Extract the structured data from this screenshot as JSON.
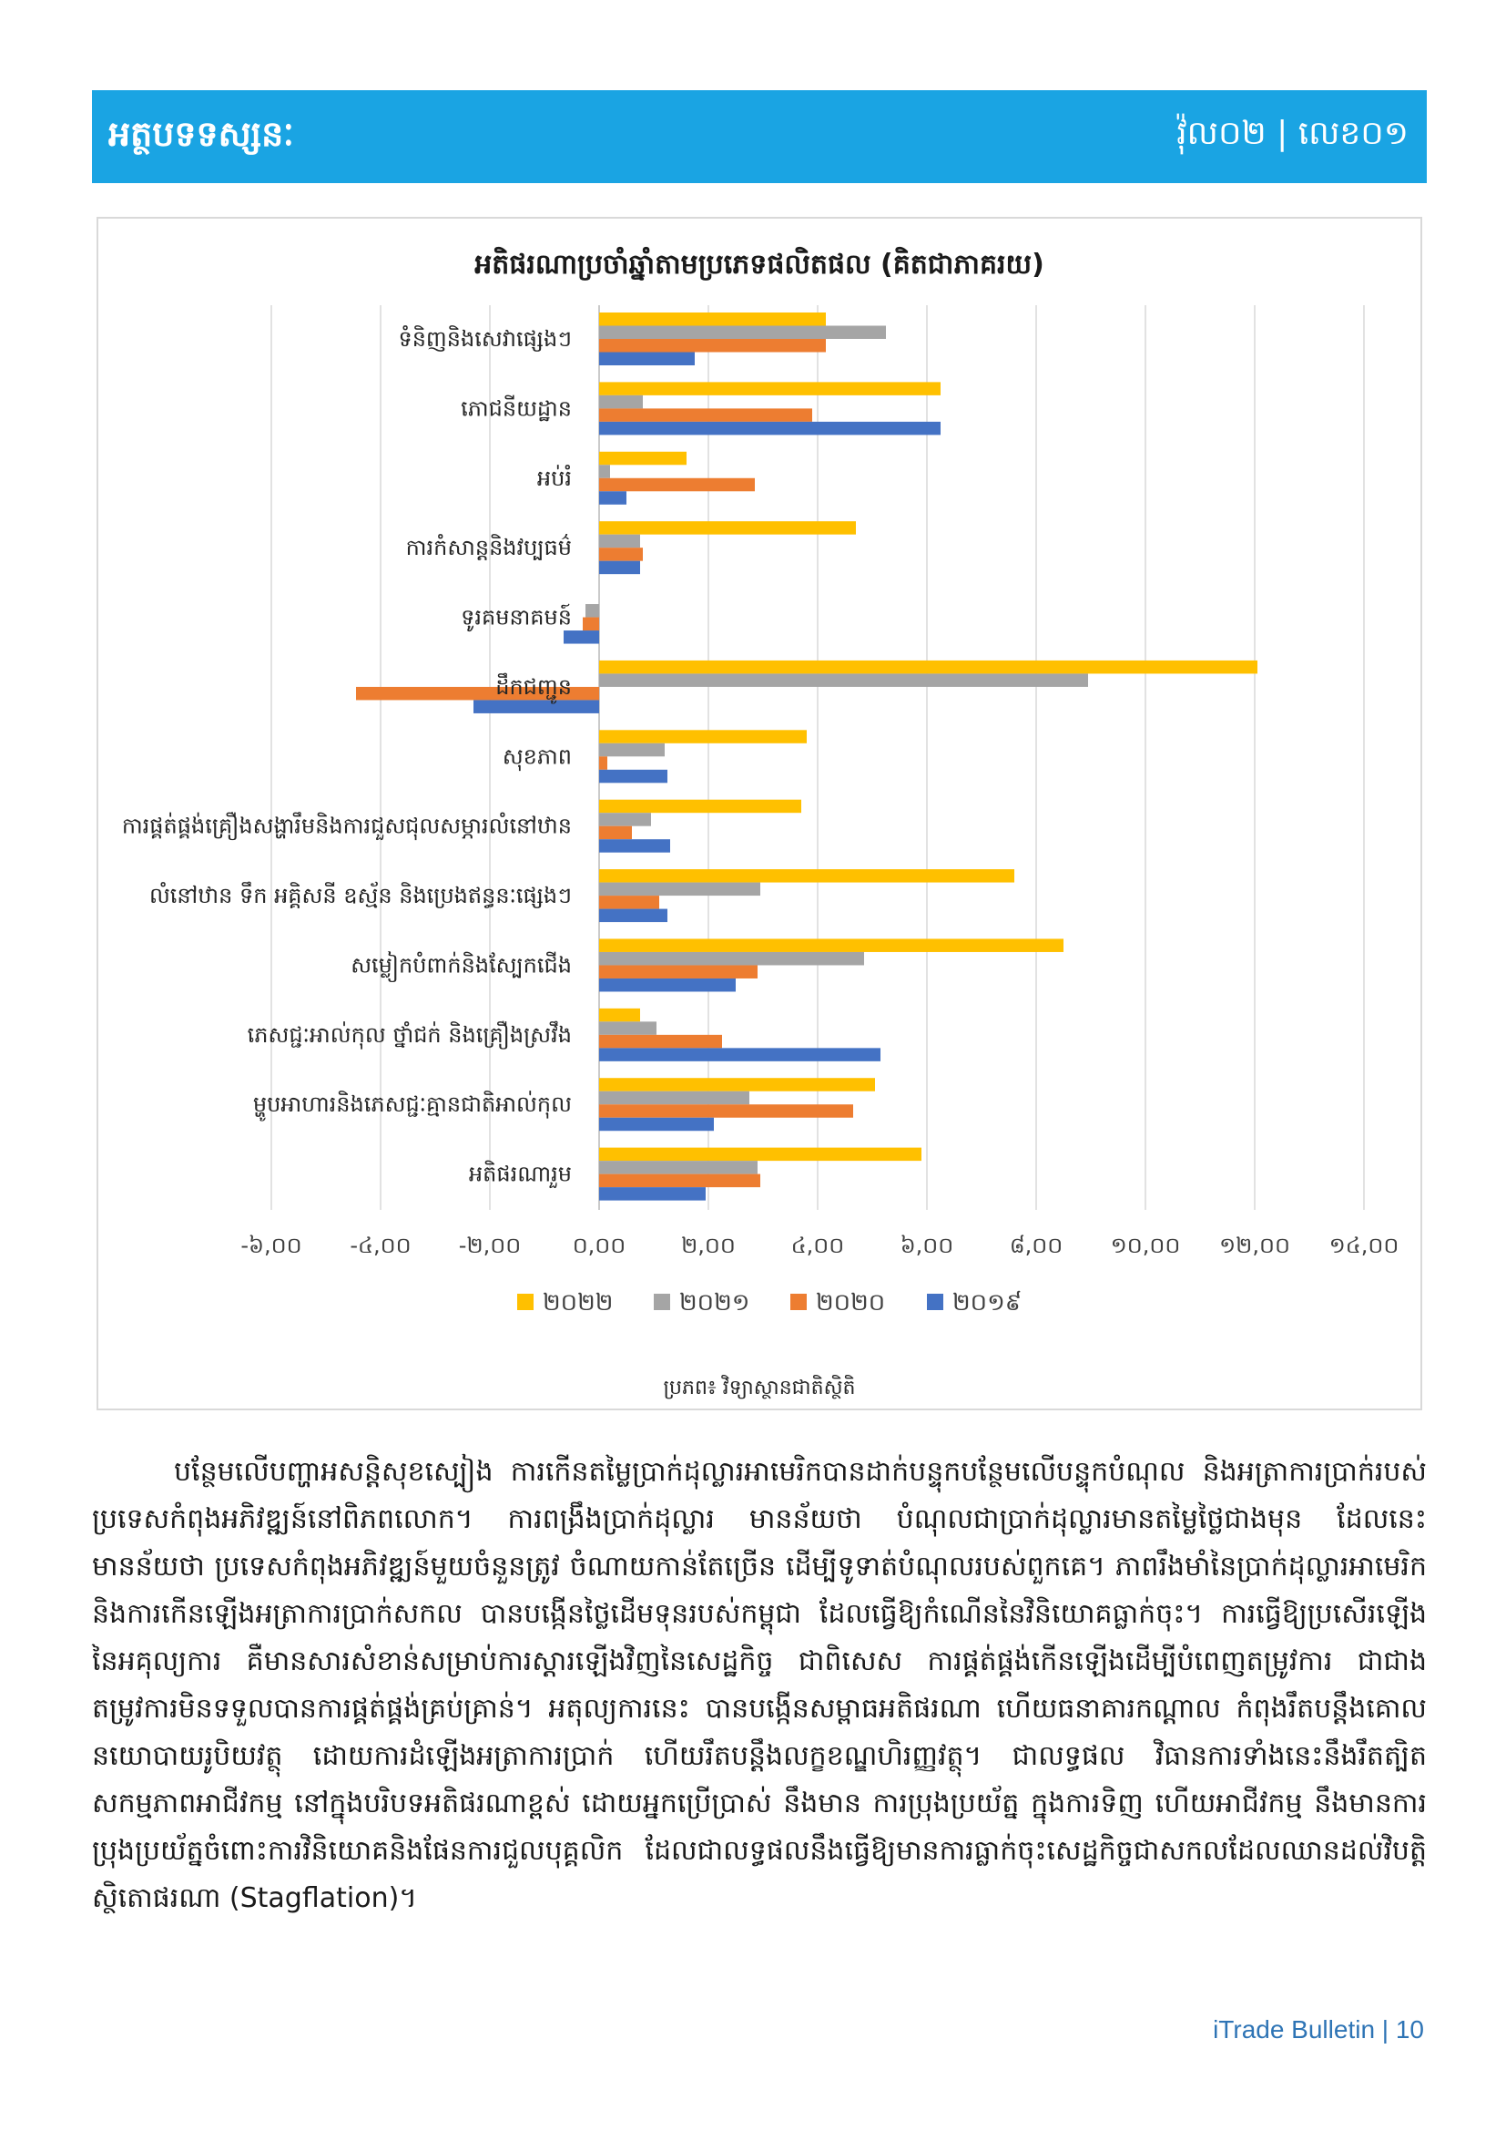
{
  "header": {
    "title": "អត្ថបទទស្សនៈ",
    "issue": "វ៉ុល០២ | លេខ០១"
  },
  "chart_data": {
    "type": "bar",
    "orientation": "horizontal",
    "title": "អតិផរណាប្រចាំឆ្នាំតាមប្រភេទផលិតផល (គិតជាភាគរយ)",
    "source": "ប្រភព៖ វិទ្យាស្ថានជាតិស្ថិតិ",
    "categories": [
      "ទំនិញនិងសេវាផ្សេងៗ",
      "ភោជនីយដ្ឋាន",
      "អប់រំ",
      "ការកំសាន្តនិងវប្បធម៌",
      "ទូរគមនាគមន៍",
      "ដឹកជញ្ជូន",
      "សុខភាព",
      "ការផ្គត់ផ្គង់គ្រឿងសង្ហារឹមនិងការជួសជុលសម្ភារលំនៅឋាន",
      "លំនៅឋាន ទឹក អគ្គិសនី ឧស្ម័ន និងប្រេងឥន្ធនៈផ្សេងៗ",
      "សម្លៀកបំពាក់និងស្បែកជើង",
      "ភេសជ្ជៈអាល់កុល ថ្នាំជក់ និងគ្រឿងស្រវឹង",
      "ម្ហូបអាហារនិងភេសជ្ជៈគ្មានជាតិអាល់កុល",
      "អតិផរណារួម"
    ],
    "series": [
      {
        "name": "២០២២",
        "color": "#ffc000",
        "values": [
          4.15,
          6.25,
          1.6,
          4.7,
          0.0,
          12.05,
          3.8,
          3.7,
          7.6,
          8.5,
          0.75,
          5.05,
          5.9
        ]
      },
      {
        "name": "២០២១",
        "color": "#a5a5a5",
        "values": [
          5.25,
          0.8,
          0.2,
          0.75,
          -0.25,
          8.95,
          1.2,
          0.95,
          2.95,
          4.85,
          1.05,
          2.75,
          2.9
        ]
      },
      {
        "name": "២០២០",
        "color": "#ed7d31",
        "values": [
          4.15,
          3.9,
          2.85,
          0.8,
          -0.3,
          -4.45,
          0.15,
          0.6,
          1.1,
          2.9,
          2.25,
          4.65,
          2.95
        ]
      },
      {
        "name": "២០១៩",
        "color": "#4472c4",
        "values": [
          1.75,
          6.25,
          0.5,
          0.75,
          -0.65,
          -2.3,
          1.25,
          1.3,
          1.25,
          2.5,
          5.15,
          2.1,
          1.95
        ]
      }
    ],
    "legend_order": [
      0,
      1,
      2,
      3
    ],
    "xlim": [
      -6,
      14
    ],
    "xticks": [
      -6,
      -4,
      -2,
      0,
      2,
      4,
      6,
      8,
      10,
      12,
      14
    ],
    "xtick_labels": [
      "-៦,០០",
      "-៤,០០",
      "-២,០០",
      "០,០០",
      "២,០០",
      "៤,០០",
      "៦,០០",
      "៨,០០",
      "១០,០០",
      "១២,០០",
      "១៤,០០"
    ],
    "grid": true,
    "legend_position": "bottom"
  },
  "body": {
    "paragraph": "បន្ថែមលើបញ្ហាអសន្តិសុខស្បៀង ការកើនតម្លៃប្រាក់ដុល្លារអាមេរិកបានដាក់បន្ទុកបន្ថែមលើបន្ទុកបំណុល និងអត្រាការប្រាក់របស់ប្រទេសកំពុងអភិវឌ្ឍន៍នៅពិភពលោក។ ការពង្រឹងប្រាក់ដុល្លារ មានន័យថា បំណុលជាប្រាក់ដុល្លារមានតម្លៃថ្លៃជាងមុន ដែលនេះមានន័យថា ប្រទេសកំពុងអភិវឌ្ឍន៍មួយចំនួនត្រូវ ចំណាយកាន់តែច្រើន ដើម្បីទូទាត់បំណុលរបស់ពួកគេ។ ភាពរឹងមាំនៃប្រាក់ដុល្លារអាមេរិក និងការកើនឡើងអត្រាការប្រាក់សកល បានបង្កើនថ្លៃដើមទុនរបស់កម្ពុជា ដែលធ្វើឱ្យកំណើននៃវិនិយោគធ្លាក់ចុះ។ ការធ្វើឱ្យប្រសើរឡើងនៃអគុល្យការ គឺមានសារសំខាន់សម្រាប់ការស្តារឡើងវិញនៃសេដ្ឋកិច្ច ជាពិសេស ការផ្គត់ផ្គង់កើនឡើងដើម្បីបំពេញតម្រូវការ ជាជាងតម្រូវការមិនទទួលបានការផ្គត់ផ្គង់គ្រប់គ្រាន់។ អតុល្យការនេះ បានបង្កើនសម្ពាធអតិផរណា ហើយធនាគារកណ្តាល កំពុងរឹតបន្តឹងគោលនយោបាយរូបិយវត្ថុ ដោយការដំឡើងអត្រាការប្រាក់ ហើយរឹតបន្តឹងលក្ខខណ្ឌហិរញ្ញវត្ថុ។ ជាលទ្ធផល វិធានការទាំងនេះនឹងរឹតត្បិតសកម្មភាពអាជីវកម្ម នៅក្នុងបរិបទអតិផរណាខ្ពស់ ដោយអ្នកប្រើប្រាស់ នឹងមាន ការប្រុងប្រយ័ត្ន ក្នុងការទិញ ហើយអាជីវកម្ម នឹងមានការប្រុងប្រយ័ត្នចំពោះការវិនិយោគនិងផែនការជួលបុគ្គលិក ដែលជាលទ្ធផលនឹងធ្វើឱ្យមានការធ្លាក់ចុះសេដ្ឋកិច្ចជាសកលដែលឈានដល់វិបត្តិស្ថិតោផរណា (Stagflation)។"
  },
  "footer": {
    "text": "iTrade Bulletin | 10"
  }
}
